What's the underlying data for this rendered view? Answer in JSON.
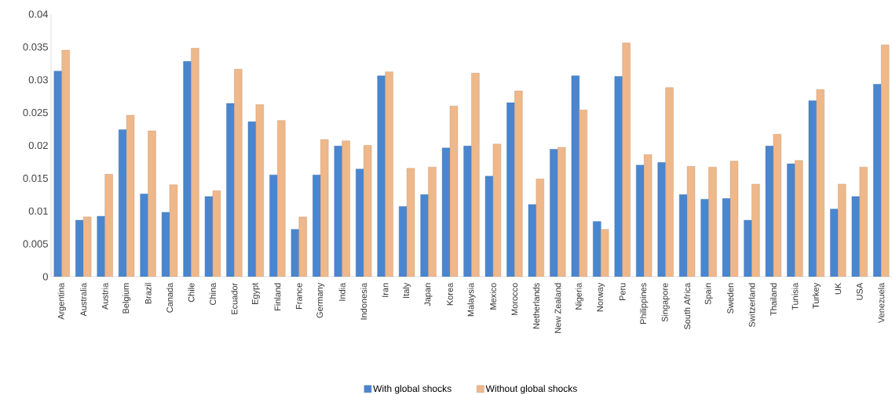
{
  "chart_data": {
    "type": "bar",
    "categories": [
      "Argentina",
      "Australia",
      "Austria",
      "Belgium",
      "Brazil",
      "Canada",
      "Chile",
      "China",
      "Ecuador",
      "Egypt",
      "Finland",
      "France",
      "Germany",
      "India",
      "Indonesia",
      "Iran",
      "Italy",
      "Japan",
      "Korea",
      "Malaysia",
      "Mexico",
      "Morocco",
      "Netherlands",
      "New Zealand",
      "Nigeria",
      "Norway",
      "Peru",
      "Philippines",
      "Singapore",
      "South Africa",
      "Spain",
      "Sweden",
      "Switzerland",
      "Thailand",
      "Tunisia",
      "Turkey",
      "UK",
      "USA",
      "Venezuela"
    ],
    "series": [
      {
        "name": "With global shocks",
        "color": "#4a86d0",
        "values": [
          0.0313,
          0.0086,
          0.0092,
          0.0224,
          0.0126,
          0.0098,
          0.0328,
          0.0122,
          0.0264,
          0.0236,
          0.0155,
          0.0072,
          0.0155,
          0.0199,
          0.0164,
          0.0306,
          0.0107,
          0.0125,
          0.0196,
          0.0199,
          0.0153,
          0.0265,
          0.011,
          0.0194,
          0.0306,
          0.0084,
          0.0305,
          0.017,
          0.0174,
          0.0125,
          0.0118,
          0.0119,
          0.0086,
          0.0199,
          0.0172,
          0.0268,
          0.0103,
          0.0122,
          0.0293
        ]
      },
      {
        "name": "Without global shocks",
        "color": "#efb88a",
        "values": [
          0.0345,
          0.0091,
          0.0156,
          0.0246,
          0.0222,
          0.014,
          0.0348,
          0.0131,
          0.0316,
          0.0262,
          0.0238,
          0.0091,
          0.0209,
          0.0207,
          0.02,
          0.0312,
          0.0165,
          0.0167,
          0.026,
          0.031,
          0.0202,
          0.0283,
          0.0149,
          0.0197,
          0.0254,
          0.0072,
          0.0356,
          0.0186,
          0.0288,
          0.0168,
          0.0167,
          0.0176,
          0.0141,
          0.0217,
          0.0177,
          0.0285,
          0.0141,
          0.0167,
          0.0353
        ]
      }
    ],
    "ylim": [
      0,
      0.04
    ],
    "yticks": [
      0,
      0.005,
      0.01,
      0.015,
      0.02,
      0.025,
      0.03,
      0.035,
      0.04
    ],
    "legend": "bottom",
    "grid": false
  }
}
